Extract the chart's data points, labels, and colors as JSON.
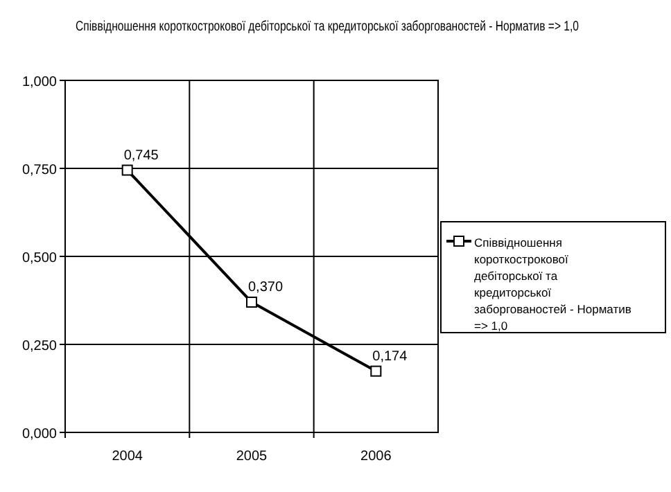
{
  "chart_data": {
    "type": "line",
    "title": "Співвідношення короткострокової дебіторської та кредиторської заборгованостей - Норматив => 1,0",
    "categories": [
      "2004",
      "2005",
      "2006"
    ],
    "series": [
      {
        "name": "Співвідношення короткострокової дебіторської та кредиторської заборгованостей - Норматив => 1,0",
        "color": "#000000",
        "values": [
          0.745,
          0.37,
          0.174
        ],
        "value_labels": [
          "0,745",
          "0,370",
          "0,174"
        ]
      }
    ],
    "ylim": [
      0,
      1
    ],
    "yticks": [
      {
        "value": 0,
        "label": "0,000"
      },
      {
        "value": 0.25,
        "label": "0,250"
      },
      {
        "value": 0.5,
        "label": "0,500"
      },
      {
        "value": 0.75,
        "label": "0,750"
      },
      {
        "value": 1,
        "label": "1,000"
      }
    ],
    "grid": true,
    "legend": "right",
    "marker": "square",
    "line_style": "solid"
  }
}
